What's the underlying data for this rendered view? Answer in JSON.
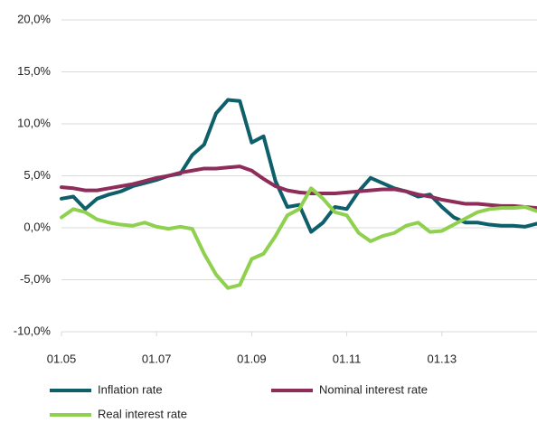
{
  "chart_data": {
    "type": "line",
    "x": [
      2005,
      2005.25,
      2005.5,
      2005.75,
      2006,
      2006.25,
      2006.5,
      2006.75,
      2007,
      2007.25,
      2007.5,
      2007.75,
      2008,
      2008.25,
      2008.5,
      2008.75,
      2009,
      2009.25,
      2009.5,
      2009.75,
      2010,
      2010.25,
      2010.5,
      2010.75,
      2011,
      2011.25,
      2011.5,
      2011.75,
      2012,
      2012.25,
      2012.5,
      2012.75,
      2013,
      2013.25,
      2013.5,
      2013.75,
      2014,
      2014.25,
      2014.5,
      2014.75,
      2015
    ],
    "series": [
      {
        "name": "Inflation rate",
        "color": "#0f5f6b",
        "values": [
          2.8,
          3.0,
          1.8,
          2.8,
          3.2,
          3.5,
          4.0,
          4.3,
          4.6,
          5.0,
          5.2,
          7.0,
          8.0,
          11.0,
          12.3,
          12.2,
          8.2,
          8.8,
          4.5,
          2.0,
          2.2,
          -0.4,
          0.5,
          2.0,
          1.8,
          3.5,
          4.8,
          4.3,
          3.8,
          3.5,
          3.0,
          3.2,
          2.0,
          1.0,
          0.5,
          0.5,
          0.3,
          0.2,
          0.2,
          0.1,
          0.4
        ]
      },
      {
        "name": "Nominal interest rate",
        "color": "#8e2d5a",
        "values": [
          3.9,
          3.8,
          3.6,
          3.6,
          3.8,
          4.0,
          4.2,
          4.5,
          4.8,
          5.0,
          5.3,
          5.5,
          5.7,
          5.7,
          5.8,
          5.9,
          5.5,
          4.7,
          4.0,
          3.6,
          3.4,
          3.3,
          3.3,
          3.3,
          3.4,
          3.5,
          3.6,
          3.7,
          3.7,
          3.5,
          3.2,
          3.0,
          2.7,
          2.5,
          2.3,
          2.3,
          2.2,
          2.1,
          2.1,
          2.0,
          1.9
        ]
      },
      {
        "name": "Real interest rate",
        "color": "#8fd14f",
        "values": [
          1.0,
          1.8,
          1.5,
          0.8,
          0.5,
          0.3,
          0.2,
          0.5,
          0.1,
          -0.1,
          0.1,
          -0.1,
          -2.5,
          -4.5,
          -5.8,
          -5.5,
          -3.0,
          -2.5,
          -0.8,
          1.2,
          1.8,
          3.8,
          2.8,
          1.5,
          1.2,
          -0.5,
          -1.3,
          -0.8,
          -0.5,
          0.2,
          0.5,
          -0.4,
          -0.3,
          0.3,
          0.9,
          1.5,
          1.8,
          1.9,
          1.9,
          2.0,
          1.6
        ]
      }
    ],
    "xlim": [
      2005,
      2015
    ],
    "xticks": [
      {
        "value": 2005,
        "label": "01.05"
      },
      {
        "value": 2007,
        "label": "01.07"
      },
      {
        "value": 2009,
        "label": "01.09"
      },
      {
        "value": 2011,
        "label": "01.11"
      },
      {
        "value": 2013,
        "label": "01.13"
      }
    ],
    "ylim": [
      -10,
      20
    ],
    "yticks": [
      {
        "value": -10,
        "label": "-10,0%"
      },
      {
        "value": -5,
        "label": "-5,0%"
      },
      {
        "value": 0,
        "label": "0,0%"
      },
      {
        "value": 5,
        "label": "5,0%"
      },
      {
        "value": 10,
        "label": "10,0%"
      },
      {
        "value": 15,
        "label": "15,0%"
      },
      {
        "value": 20,
        "label": "20,0%"
      }
    ],
    "grid": true,
    "legend": "bottom"
  }
}
